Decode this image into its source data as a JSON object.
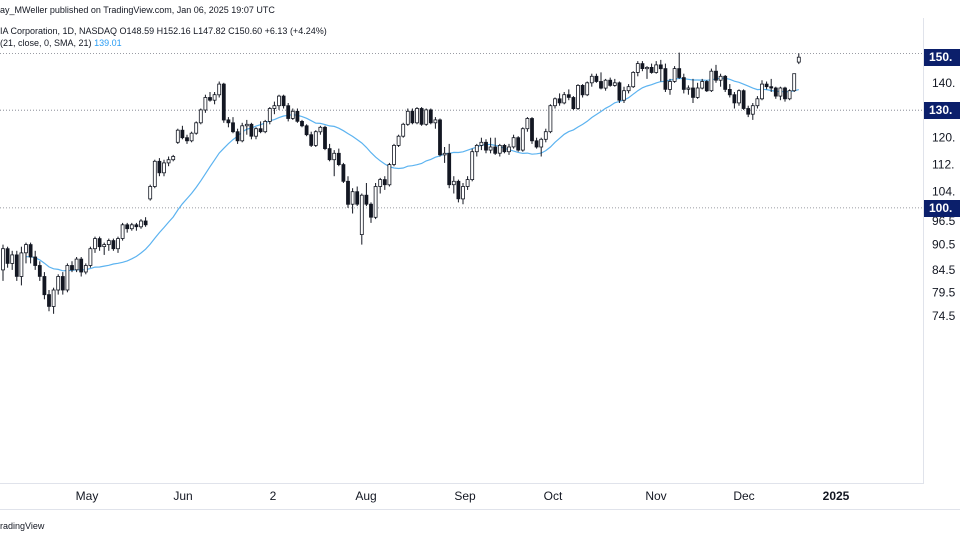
{
  "header": {
    "publisher": "ay_MWeller published on TradingView.com, Jan 06, 2025 19:07 UTC",
    "symbol_line": "IA Corporation, 1D, NASDAQ  O148.59  H152.16  L147.82  C150.60  +6.13 (+4.24%)",
    "sma_label": "(21, close, 0, SMA, 21)",
    "sma_value": "139.01"
  },
  "footer": {
    "brand": "radingView"
  },
  "colors": {
    "up_fill": "#ffffff",
    "down_fill": "#131722",
    "candle_outline": "#131722",
    "sma_line": "#5cb3f0",
    "tag_bg": "#0b1f6b",
    "hline": "#787b86"
  },
  "chart_data": {
    "type": "candlestick",
    "price_scale": "log",
    "x_tick_labels": [
      "May",
      "Jun",
      "2",
      "Aug",
      "Sep",
      "Oct",
      "Nov",
      "Dec",
      "2025"
    ],
    "y_tick_labels": [
      "150.",
      "140.",
      "130.",
      "120.",
      "112.",
      "104.",
      "96.5",
      "90.5",
      "84.5",
      "79.5",
      "74.5"
    ],
    "y_tick_values": [
      152,
      140.5,
      130.5,
      121,
      112.5,
      104.5,
      96.5,
      90.5,
      84.5,
      79.5,
      74.5
    ],
    "price_tags": [
      {
        "text": "150.",
        "value": 150.6
      },
      {
        "text": "130.",
        "value": 130.4
      },
      {
        "text": "100.",
        "value": 100.0
      }
    ],
    "horizontal_lines": [
      152.1,
      130.4,
      100.0
    ],
    "ohlc": [
      [
        84.5,
        90.5,
        82.0,
        89.5
      ],
      [
        89.5,
        90.0,
        85.0,
        86.0
      ],
      [
        86.0,
        89.0,
        84.5,
        88.0
      ],
      [
        88.0,
        89.0,
        82.0,
        83.0
      ],
      [
        83.0,
        90.0,
        81.0,
        88.5
      ],
      [
        88.5,
        91.0,
        86.0,
        90.5
      ],
      [
        90.5,
        91.0,
        86.0,
        87.5
      ],
      [
        87.5,
        89.0,
        84.5,
        85.5
      ],
      [
        85.5,
        86.5,
        82.0,
        83.0
      ],
      [
        83.0,
        84.0,
        78.0,
        79.0
      ],
      [
        79.0,
        80.0,
        75.5,
        76.5
      ],
      [
        76.5,
        80.5,
        75.0,
        80.0
      ],
      [
        80.0,
        83.5,
        79.0,
        83.0
      ],
      [
        83.0,
        84.0,
        79.0,
        80.0
      ],
      [
        80.0,
        86.0,
        79.5,
        85.5
      ],
      [
        85.5,
        86.5,
        84.0,
        84.5
      ],
      [
        84.5,
        87.5,
        84.0,
        87.0
      ],
      [
        87.0,
        87.5,
        83.0,
        84.0
      ],
      [
        84.0,
        86.0,
        83.5,
        85.5
      ],
      [
        85.5,
        90.0,
        85.0,
        89.5
      ],
      [
        89.5,
        92.5,
        88.5,
        92.0
      ],
      [
        92.0,
        92.5,
        89.0,
        90.0
      ],
      [
        90.0,
        91.0,
        88.0,
        90.5
      ],
      [
        90.5,
        92.0,
        89.0,
        91.5
      ],
      [
        91.5,
        92.0,
        89.0,
        89.5
      ],
      [
        89.5,
        92.5,
        88.5,
        92.0
      ],
      [
        92.0,
        96.0,
        91.5,
        95.5
      ],
      [
        95.5,
        96.0,
        93.5,
        94.5
      ],
      [
        94.5,
        96.0,
        94.0,
        95.5
      ],
      [
        95.5,
        96.0,
        94.0,
        95.0
      ],
      [
        95.0,
        97.0,
        94.5,
        96.5
      ],
      [
        96.5,
        97.5,
        95.0,
        95.5
      ],
      [
        102.5,
        106.5,
        102.0,
        106.0
      ],
      [
        106.0,
        114.0,
        105.5,
        113.5
      ],
      [
        113.5,
        114.5,
        109.0,
        110.0
      ],
      [
        110.0,
        114.0,
        109.0,
        113.0
      ],
      [
        113.0,
        115.0,
        112.0,
        114.0
      ],
      [
        114.0,
        115.5,
        113.5,
        115.0
      ],
      [
        119.5,
        124.0,
        119.0,
        123.5
      ],
      [
        123.5,
        125.0,
        120.5,
        121.0
      ],
      [
        121.0,
        122.0,
        119.0,
        120.0
      ],
      [
        120.0,
        123.0,
        119.5,
        122.5
      ],
      [
        122.5,
        126.5,
        122.0,
        126.0
      ],
      [
        126.0,
        131.0,
        125.5,
        130.5
      ],
      [
        130.5,
        136.0,
        129.5,
        135.0
      ],
      [
        135.0,
        137.0,
        133.5,
        134.0
      ],
      [
        134.0,
        137.0,
        132.5,
        136.0
      ],
      [
        136.0,
        141.0,
        135.0,
        140.0
      ],
      [
        140.0,
        140.5,
        126.0,
        127.0
      ],
      [
        127.0,
        128.0,
        124.5,
        126.0
      ],
      [
        126.0,
        128.0,
        122.5,
        123.0
      ],
      [
        123.0,
        124.0,
        119.0,
        120.0
      ],
      [
        120.0,
        126.0,
        119.5,
        125.0
      ],
      [
        125.0,
        127.0,
        122.0,
        125.5
      ],
      [
        125.5,
        126.0,
        120.5,
        121.5
      ],
      [
        121.5,
        124.5,
        120.5,
        124.0
      ],
      [
        124.0,
        126.5,
        122.5,
        123.0
      ],
      [
        123.0,
        127.0,
        122.5,
        126.5
      ],
      [
        126.5,
        131.5,
        125.5,
        131.0
      ],
      [
        131.0,
        133.5,
        129.0,
        132.0
      ],
      [
        132.0,
        136.0,
        130.5,
        135.5
      ],
      [
        135.5,
        136.0,
        131.0,
        132.0
      ],
      [
        132.0,
        133.0,
        126.5,
        127.5
      ],
      [
        127.5,
        131.0,
        127.0,
        130.0
      ],
      [
        130.0,
        131.0,
        126.0,
        126.5
      ],
      [
        126.5,
        127.0,
        124.5,
        125.0
      ],
      [
        125.0,
        125.5,
        121.5,
        122.0
      ],
      [
        122.0,
        123.0,
        118.0,
        118.5
      ],
      [
        118.5,
        123.5,
        118.0,
        123.0
      ],
      [
        123.0,
        125.0,
        122.0,
        124.5
      ],
      [
        124.5,
        125.0,
        117.0,
        117.5
      ],
      [
        117.5,
        119.0,
        113.5,
        114.0
      ],
      [
        114.0,
        117.0,
        109.0,
        116.0
      ],
      [
        116.0,
        117.5,
        112.0,
        112.5
      ],
      [
        112.5,
        113.0,
        107.0,
        107.5
      ],
      [
        107.5,
        109.0,
        100.0,
        101.0
      ],
      [
        101.0,
        105.5,
        98.5,
        104.5
      ],
      [
        104.5,
        106.0,
        100.5,
        101.0
      ],
      [
        93.0,
        104.0,
        90.5,
        103.5
      ],
      [
        103.5,
        107.0,
        100.5,
        101.0
      ],
      [
        101.0,
        101.5,
        96.0,
        97.5
      ],
      [
        97.5,
        107.0,
        97.0,
        106.0
      ],
      [
        106.0,
        108.5,
        104.0,
        108.0
      ],
      [
        108.0,
        109.0,
        105.0,
        106.5
      ],
      [
        106.5,
        113.0,
        106.0,
        112.5
      ],
      [
        112.5,
        119.0,
        112.0,
        118.5
      ],
      [
        118.5,
        122.0,
        118.0,
        121.5
      ],
      [
        121.5,
        126.0,
        121.0,
        125.5
      ],
      [
        125.5,
        131.0,
        125.0,
        130.0
      ],
      [
        130.0,
        131.0,
        125.5,
        126.0
      ],
      [
        126.0,
        131.5,
        125.5,
        131.0
      ],
      [
        131.0,
        131.5,
        125.0,
        125.5
      ],
      [
        125.5,
        131.0,
        125.0,
        130.5
      ],
      [
        130.5,
        131.0,
        125.5,
        126.0
      ],
      [
        126.0,
        128.0,
        124.0,
        127.0
      ],
      [
        127.0,
        127.5,
        115.0,
        115.5
      ],
      [
        115.5,
        118.0,
        113.0,
        116.0
      ],
      [
        116.0,
        119.0,
        105.5,
        106.5
      ],
      [
        106.5,
        109.0,
        104.0,
        107.5
      ],
      [
        107.5,
        108.0,
        101.5,
        102.5
      ],
      [
        102.5,
        107.0,
        101.0,
        106.0
      ],
      [
        106.0,
        109.0,
        105.0,
        108.0
      ],
      [
        108.0,
        117.5,
        107.5,
        116.5
      ],
      [
        116.5,
        119.0,
        115.0,
        118.5
      ],
      [
        118.5,
        121.0,
        117.0,
        119.5
      ],
      [
        119.5,
        120.5,
        116.0,
        117.0
      ],
      [
        117.0,
        121.0,
        116.0,
        118.0
      ],
      [
        118.0,
        121.0,
        115.5,
        116.0
      ],
      [
        116.0,
        119.0,
        115.0,
        118.5
      ],
      [
        118.5,
        119.0,
        116.0,
        116.5
      ],
      [
        116.5,
        119.0,
        115.5,
        118.0
      ],
      [
        118.0,
        122.0,
        117.5,
        121.0
      ],
      [
        121.0,
        121.5,
        116.5,
        117.0
      ],
      [
        117.0,
        124.5,
        116.5,
        124.0
      ],
      [
        124.0,
        128.0,
        123.0,
        127.5
      ],
      [
        127.5,
        128.0,
        119.0,
        120.0
      ],
      [
        120.0,
        121.0,
        117.5,
        118.0
      ],
      [
        118.0,
        121.0,
        115.0,
        120.5
      ],
      [
        120.5,
        124.0,
        119.5,
        123.0
      ],
      [
        123.0,
        132.5,
        122.5,
        132.0
      ],
      [
        132.0,
        135.0,
        131.0,
        134.5
      ],
      [
        134.5,
        136.5,
        132.0,
        133.0
      ],
      [
        133.0,
        137.0,
        132.5,
        136.0
      ],
      [
        136.0,
        138.0,
        134.0,
        135.0
      ],
      [
        135.0,
        135.5,
        130.5,
        131.0
      ],
      [
        131.0,
        140.0,
        130.5,
        139.5
      ],
      [
        139.5,
        140.0,
        135.0,
        136.0
      ],
      [
        136.0,
        141.0,
        135.5,
        140.5
      ],
      [
        140.5,
        144.0,
        139.0,
        143.0
      ],
      [
        143.0,
        144.0,
        140.5,
        141.0
      ],
      [
        141.0,
        144.5,
        138.0,
        138.5
      ],
      [
        138.5,
        142.0,
        137.5,
        141.5
      ],
      [
        141.5,
        142.5,
        139.0,
        139.5
      ],
      [
        139.5,
        142.0,
        139.0,
        140.5
      ],
      [
        140.5,
        141.0,
        133.0,
        134.0
      ],
      [
        134.0,
        139.0,
        133.0,
        137.5
      ],
      [
        137.5,
        140.0,
        136.5,
        139.0
      ],
      [
        139.0,
        145.0,
        138.5,
        144.5
      ],
      [
        144.5,
        149.0,
        143.0,
        148.0
      ],
      [
        148.0,
        149.0,
        145.0,
        146.0
      ],
      [
        146.0,
        147.0,
        142.0,
        146.5
      ],
      [
        146.5,
        148.0,
        144.0,
        144.5
      ],
      [
        144.5,
        149.0,
        144.0,
        147.5
      ],
      [
        147.5,
        149.5,
        141.0,
        146.0
      ],
      [
        146.0,
        148.0,
        137.0,
        138.0
      ],
      [
        138.0,
        142.0,
        136.0,
        141.0
      ],
      [
        141.0,
        147.0,
        140.5,
        146.0
      ],
      [
        146.0,
        152.5,
        142.0,
        142.5
      ],
      [
        142.5,
        144.0,
        136.5,
        138.0
      ],
      [
        138.0,
        139.5,
        136.0,
        138.5
      ],
      [
        138.5,
        142.0,
        133.0,
        135.0
      ],
      [
        135.0,
        140.5,
        134.5,
        138.5
      ],
      [
        138.5,
        142.0,
        138.0,
        141.0
      ],
      [
        141.0,
        141.5,
        137.0,
        137.5
      ],
      [
        137.5,
        146.0,
        137.0,
        145.0
      ],
      [
        145.0,
        147.5,
        140.5,
        141.5
      ],
      [
        141.5,
        144.0,
        139.0,
        143.0
      ],
      [
        143.0,
        143.5,
        137.0,
        138.0
      ],
      [
        138.0,
        140.0,
        135.0,
        136.0
      ],
      [
        136.0,
        137.0,
        131.0,
        133.0
      ],
      [
        133.0,
        138.0,
        132.0,
        137.5
      ],
      [
        137.5,
        138.0,
        130.5,
        131.0
      ],
      [
        131.0,
        132.0,
        128.0,
        129.0
      ],
      [
        129.0,
        133.0,
        127.0,
        132.0
      ],
      [
        132.0,
        135.5,
        131.0,
        134.5
      ],
      [
        134.5,
        141.5,
        134.0,
        140.0
      ],
      [
        140.0,
        141.0,
        138.0,
        139.0
      ],
      [
        139.0,
        142.0,
        137.0,
        138.5
      ],
      [
        138.5,
        139.0,
        134.5,
        135.5
      ],
      [
        135.5,
        139.0,
        134.0,
        138.5
      ],
      [
        138.5,
        139.0,
        133.5,
        134.5
      ],
      [
        134.5,
        138.0,
        134.0,
        137.5
      ],
      [
        137.5,
        144.0,
        137.0,
        144.0
      ],
      [
        148.6,
        152.2,
        147.8,
        150.6
      ]
    ]
  }
}
